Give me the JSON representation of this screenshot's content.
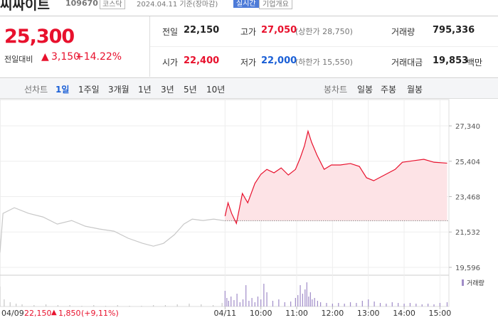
{
  "header": {
    "name": "씨싸이트",
    "code": "109670",
    "market": "코스닥",
    "date": "2024.04.11 기준(장마감)",
    "badges": [
      "실시간",
      "기업개요"
    ]
  },
  "price": {
    "current": "25,300",
    "change_label": "전일대비",
    "change_sign": "▲",
    "change": "3,150",
    "change_pct": "+14.22%"
  },
  "stats": [
    {
      "label": "전일",
      "value": "22,150"
    },
    {
      "label": "고가",
      "value": "27,050",
      "extra": "(상한가 28,750)"
    },
    {
      "label": "거래량",
      "value": "795,336"
    },
    {
      "label": "시가",
      "value": "22,400"
    },
    {
      "label": "저가",
      "value": "22,000",
      "extra": "(하한가 15,550)"
    },
    {
      "label": "거래대금",
      "value": "19,853",
      "unit": "백만"
    }
  ],
  "tabs": {
    "line": {
      "label": "선차트",
      "items": [
        "1일",
        "1주일",
        "3개월",
        "1년",
        "3년",
        "5년",
        "10년"
      ],
      "active": 0
    },
    "candle": {
      "label": "봉차트",
      "items": [
        "일봉",
        "주봉",
        "월봉"
      ]
    }
  },
  "chart_data": {
    "type": "line",
    "series": [
      {
        "color": "#c8c8c8",
        "x": [
          -377,
          -372,
          -353,
          -329,
          -305,
          -281,
          -257,
          -234,
          -210,
          -186,
          -162,
          -138,
          -120,
          -103,
          -85,
          -69,
          -55,
          -37,
          -19,
          -1
        ],
        "values": [
          20407,
          22550,
          22861,
          22550,
          22354,
          21965,
          22160,
          21848,
          21692,
          21575,
          21186,
          20913,
          20757,
          20913,
          21380,
          21965,
          22238,
          22160,
          22238,
          22150
        ]
      },
      {
        "color": "#e8112d",
        "fill": "#fde3e6",
        "x": [
          0,
          5,
          11,
          19,
          29,
          38,
          50,
          60,
          70,
          82,
          94,
          106,
          118,
          126,
          133,
          139,
          145,
          154,
          166,
          178,
          193,
          210,
          225,
          237,
          249,
          267,
          285,
          297,
          315,
          333,
          350,
          372
        ],
        "values": [
          22400,
          23130,
          22550,
          22000,
          23640,
          23130,
          24190,
          24690,
          24960,
          24770,
          25040,
          24650,
          24960,
          25590,
          26250,
          27050,
          26440,
          25740,
          24960,
          25200,
          25200,
          25280,
          25120,
          24500,
          24340,
          24650,
          24960,
          25350,
          25430,
          25510,
          25350,
          25300
        ]
      }
    ],
    "reference": 22150,
    "xlim": [
      -377,
      375
    ],
    "ylim": [
      19245,
      28197
    ],
    "yticks": [
      {
        "value": 19596,
        "label": "19,596"
      },
      {
        "value": 21532,
        "label": "21,532"
      },
      {
        "value": 23468,
        "label": "23,468"
      },
      {
        "value": 25404,
        "label": "25,404"
      },
      {
        "value": 27340,
        "label": "27,340"
      }
    ],
    "xticks": [
      {
        "value": 0,
        "label": "04/11"
      },
      {
        "value": 60,
        "label": "10:00"
      },
      {
        "value": 120,
        "label": "11:00"
      },
      {
        "value": 180,
        "label": "12:00"
      },
      {
        "value": 240,
        "label": "13:00"
      },
      {
        "value": 300,
        "label": "14:00"
      },
      {
        "value": 360,
        "label": "15:00"
      }
    ],
    "grid": true,
    "volume": {
      "name": "거래량",
      "series": [
        {
          "color": "#c8c8c8",
          "x": [
            -377,
            -370,
            -360,
            -350,
            -340,
            -320,
            -300,
            -280,
            -260,
            -240,
            -220,
            -200,
            -180,
            -160,
            -140,
            -120,
            -100,
            -80,
            -60,
            -40,
            -20,
            -5
          ],
          "values": [
            28,
            10,
            6,
            4,
            3,
            2,
            3,
            2,
            2,
            1,
            2,
            1,
            2,
            1,
            1,
            2,
            2,
            3,
            4,
            3,
            2,
            5
          ]
        },
        {
          "color": "#a08cc8",
          "x": [
            0,
            3,
            6,
            10,
            15,
            20,
            25,
            30,
            35,
            40,
            45,
            50,
            55,
            60,
            65,
            70,
            80,
            90,
            100,
            110,
            118,
            122,
            126,
            130,
            134,
            137,
            140,
            143,
            146,
            150,
            155,
            160,
            170,
            180,
            190,
            200,
            210,
            220,
            230,
            240,
            250,
            260,
            270,
            280,
            290,
            300,
            310,
            320,
            330,
            340,
            350,
            360,
            372
          ],
          "values": [
            22,
            12,
            8,
            14,
            9,
            18,
            6,
            10,
            30,
            8,
            12,
            6,
            14,
            10,
            32,
            20,
            8,
            10,
            6,
            7,
            12,
            16,
            30,
            18,
            24,
            34,
            14,
            20,
            10,
            12,
            8,
            6,
            5,
            4,
            5,
            4,
            6,
            5,
            8,
            10,
            7,
            5,
            4,
            6,
            5,
            4,
            5,
            4,
            3,
            4,
            3,
            5,
            6
          ]
        }
      ]
    }
  },
  "footer": {
    "date": "04/09",
    "close": "22,150",
    "sign": "▲",
    "change": "1,850",
    "pct": "(+9,11%)"
  }
}
